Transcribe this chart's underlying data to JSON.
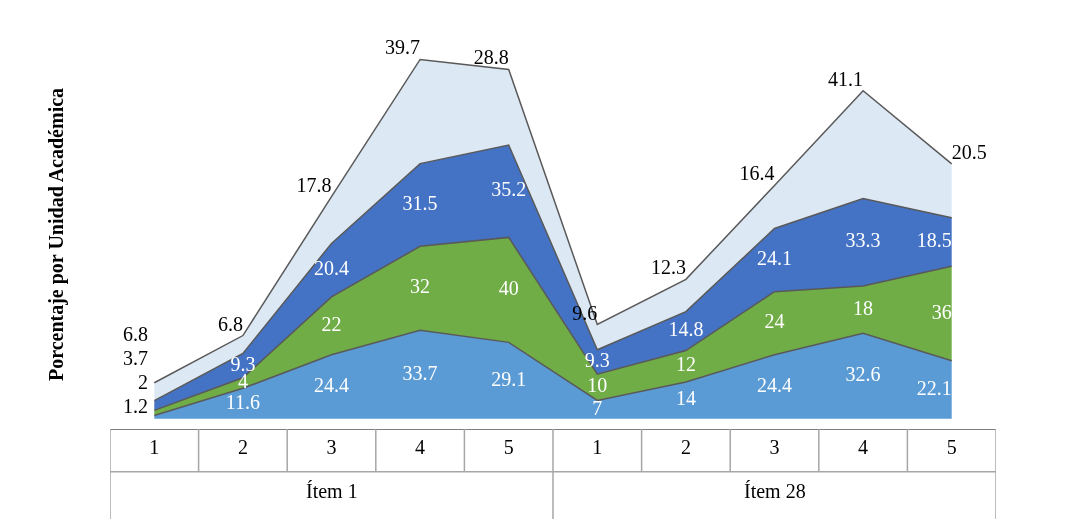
{
  "chart_data": {
    "type": "area",
    "stacked": true,
    "data_labels": true,
    "ylabel": "Porcentaje por Unidad Académica",
    "categories": [
      "1",
      "2",
      "3",
      "4",
      "5",
      "1",
      "2",
      "3",
      "4",
      "5"
    ],
    "annotations": [
      "Ítem 1",
      "Ítem 28"
    ],
    "series": [
      {
        "color": "#5b9bd5",
        "values": [
          1.2,
          11.6,
          24.4,
          33.7,
          29.1,
          7,
          14,
          24.4,
          32.6,
          22.1
        ]
      },
      {
        "color": "#70ad47",
        "values": [
          2,
          4,
          22,
          32,
          40,
          10,
          12,
          24,
          18,
          36
        ]
      },
      {
        "color": "#4472c4",
        "values": [
          3.7,
          9.3,
          20.4,
          31.5,
          35.2,
          9.3,
          14.8,
          24.1,
          33.3,
          18.5
        ]
      },
      {
        "color": "#dde8f5",
        "values": [
          6.8,
          6.8,
          17.8,
          39.7,
          28.8,
          9.6,
          12.3,
          16.4,
          41.1,
          20.5
        ]
      }
    ]
  }
}
